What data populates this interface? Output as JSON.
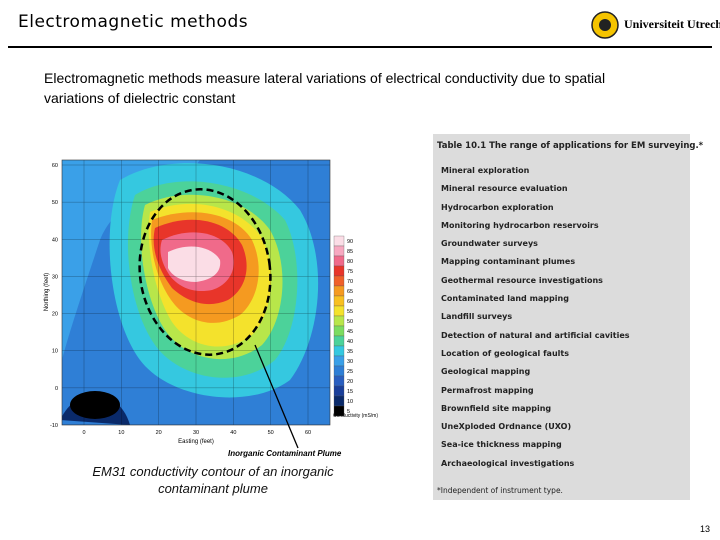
{
  "header": {
    "title": "Electromagnetic methods",
    "logo": "Universiteit Utrecht"
  },
  "body": "Electromagnetic methods measure lateral variations of electrical conductivity due to spatial variations of dielectric constant",
  "figure": {
    "y_axis_label": "Northing (feet)",
    "x_axis_label": "Easting (feet)",
    "y_ticks": [
      "60",
      "50",
      "40",
      "30",
      "20",
      "10",
      "0",
      "-10"
    ],
    "x_ticks": [
      "0",
      "10",
      "20",
      "30",
      "40",
      "50",
      "60"
    ],
    "colorbar_labels": [
      "90",
      "85",
      "80",
      "75",
      "70",
      "65",
      "60",
      "55",
      "50",
      "45",
      "40",
      "35",
      "30",
      "25",
      "20",
      "15",
      "10",
      "5"
    ],
    "colorbar_title": "Conductivity (mS/m)",
    "annotation": "Inorganic Contaminant Plume",
    "caption": "EM31 conductivity contour of an inorganic contaminant plume"
  },
  "table": {
    "title": "Table 10.1 The range of applications for EM surveying.*",
    "items": [
      "Mineral exploration",
      "Mineral resource evaluation",
      "Hydrocarbon exploration",
      "Monitoring hydrocarbon reservoirs",
      "Groundwater surveys",
      "Mapping contaminant plumes",
      "Geothermal resource investigations",
      "Contaminated land mapping",
      "Landfill surveys",
      "Detection of natural and artificial cavities",
      "Location of geological faults",
      "Geological mapping",
      "Permafrost mapping",
      "Brownfield site mapping",
      "UneXploded Ordnance (UXO)",
      "Sea-ice thickness mapping",
      "Archaeological investigations"
    ],
    "footnote": "*Independent of instrument type."
  },
  "page_number": "13"
}
